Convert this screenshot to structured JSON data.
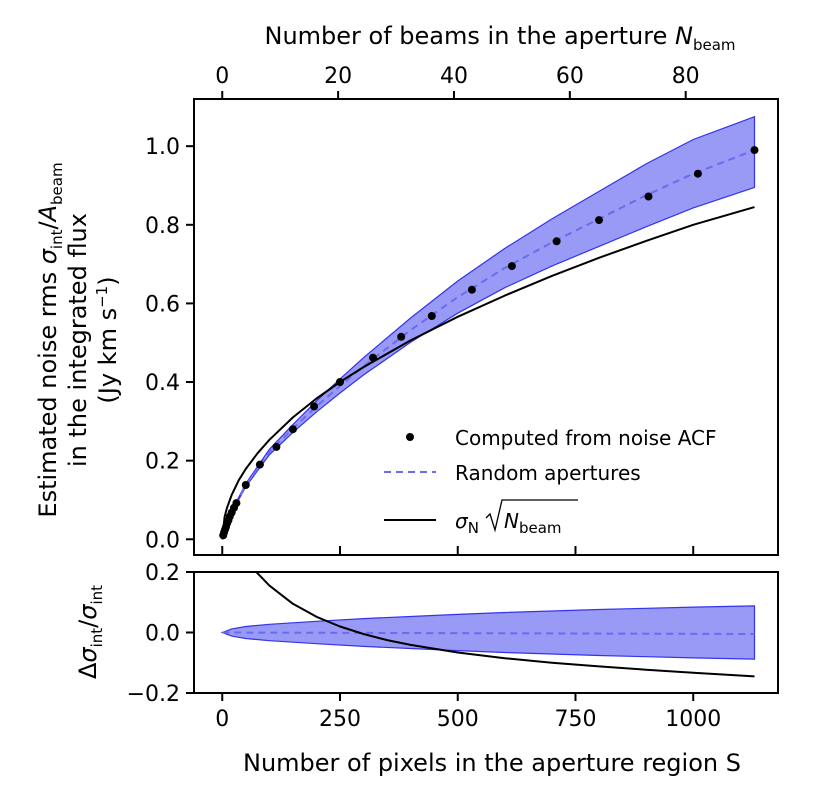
{
  "chart_data": [
    {
      "type": "line",
      "panel": "main",
      "xlabel": "Number of pixels in the aperture region S",
      "ylabel_lines": [
        {
          "pre": "Estimated noise rms ",
          "s1": "σ",
          "s1sub": "int",
          "mid": "/",
          "s2": "A",
          "s2sub": "beam"
        },
        {
          "text": "in the integrated flux"
        },
        {
          "pre": "(Jy km s",
          "sup": "−1",
          "post": ")"
        }
      ],
      "top_xlabel": {
        "pre": "Number of beams in the aperture ",
        "sym": "N",
        "sub": "beam"
      },
      "xlim": [
        -60,
        1180
      ],
      "ylim": [
        -0.04,
        1.12
      ],
      "x_ticks": [
        0,
        250,
        500,
        750,
        1000
      ],
      "x_tick_labels": [
        "0",
        "250",
        "500",
        "750",
        "1000"
      ],
      "y_ticks": [
        0.0,
        0.2,
        0.4,
        0.6,
        0.8,
        1.0
      ],
      "y_tick_labels": [
        "0.0",
        "0.2",
        "0.4",
        "0.6",
        "0.8",
        "1.0"
      ],
      "top_ticks_beams": [
        0,
        20,
        40,
        60,
        80
      ],
      "top_tick_labels": [
        "0",
        "20",
        "40",
        "60",
        "80"
      ],
      "pixels_per_beam": 12.3,
      "legend": {
        "placement": "lower-right",
        "entries": [
          {
            "kind": "marker",
            "label": "Computed from noise ACF"
          },
          {
            "kind": "dashed",
            "label": "Random apertures"
          },
          {
            "kind": "solid",
            "label_sym": "σ",
            "label_sub": "N",
            "label_rad": "N",
            "label_radsub": "beam"
          }
        ]
      },
      "series": [
        {
          "kind": "points",
          "x": [
            2,
            4,
            6,
            8,
            10,
            13,
            16,
            20,
            25,
            30,
            50,
            80,
            115,
            150,
            195,
            250,
            320,
            380,
            445,
            530,
            615,
            710,
            800,
            905,
            1010,
            1130
          ],
          "y": [
            0.01,
            0.018,
            0.025,
            0.032,
            0.04,
            0.048,
            0.058,
            0.068,
            0.08,
            0.092,
            0.138,
            0.19,
            0.235,
            0.28,
            0.338,
            0.4,
            0.462,
            0.515,
            0.568,
            0.635,
            0.695,
            0.758,
            0.812,
            0.872,
            0.93,
            0.99
          ],
          "color": "#000000"
        },
        {
          "kind": "dashed",
          "x": [
            0,
            20,
            50,
            100,
            150,
            200,
            250,
            300,
            400,
            500,
            600,
            700,
            800,
            900,
            1000,
            1130
          ],
          "y": [
            0.0,
            0.07,
            0.138,
            0.222,
            0.282,
            0.338,
            0.39,
            0.44,
            0.532,
            0.616,
            0.69,
            0.755,
            0.815,
            0.875,
            0.93,
            0.99
          ],
          "color": "#6b6bef"
        },
        {
          "kind": "band",
          "x": [
            0,
            20,
            50,
            100,
            150,
            200,
            250,
            300,
            400,
            500,
            600,
            700,
            800,
            900,
            1000,
            1130
          ],
          "lower": [
            0.0,
            0.068,
            0.134,
            0.215,
            0.272,
            0.324,
            0.372,
            0.418,
            0.501,
            0.575,
            0.64,
            0.695,
            0.745,
            0.795,
            0.843,
            0.895
          ],
          "upper": [
            0.0,
            0.072,
            0.142,
            0.229,
            0.292,
            0.352,
            0.408,
            0.462,
            0.563,
            0.657,
            0.74,
            0.815,
            0.885,
            0.955,
            1.017,
            1.075
          ],
          "color": "#3333ee"
        },
        {
          "kind": "solid",
          "x": [
            0,
            5,
            10,
            20,
            35,
            50,
            75,
            100,
            150,
            200,
            250,
            300,
            400,
            500,
            600,
            700,
            800,
            900,
            1000,
            1130
          ],
          "y": [
            0.0,
            0.057,
            0.08,
            0.113,
            0.15,
            0.179,
            0.219,
            0.253,
            0.31,
            0.358,
            0.4,
            0.438,
            0.506,
            0.566,
            0.62,
            0.67,
            0.716,
            0.759,
            0.8,
            0.845
          ],
          "color": "#000000"
        }
      ]
    },
    {
      "type": "line",
      "panel": "residual",
      "ylabel": {
        "pre": "Δ",
        "s1": "σ",
        "s1sub": "int",
        "mid": "/",
        "s2": "σ",
        "s2sub": "int"
      },
      "xlim": [
        -60,
        1180
      ],
      "ylim": [
        -0.2,
        0.2
      ],
      "y_ticks": [
        -0.2,
        0.0,
        0.2
      ],
      "y_tick_labels": [
        "−0.2",
        "0.0",
        "0.2"
      ],
      "series": [
        {
          "kind": "band",
          "x": [
            0,
            20,
            50,
            100,
            200,
            300,
            400,
            500,
            600,
            700,
            800,
            900,
            1000,
            1130
          ],
          "lower": [
            0.0,
            -0.012,
            -0.02,
            -0.027,
            -0.037,
            -0.046,
            -0.053,
            -0.06,
            -0.066,
            -0.071,
            -0.076,
            -0.08,
            -0.084,
            -0.088
          ],
          "upper": [
            0.0,
            0.012,
            0.02,
            0.027,
            0.037,
            0.046,
            0.053,
            0.06,
            0.066,
            0.071,
            0.076,
            0.08,
            0.084,
            0.088
          ],
          "color": "#3333ee"
        },
        {
          "kind": "dashed",
          "x": [
            0,
            1130
          ],
          "y": [
            0.0,
            -0.005
          ],
          "color": "#6b6bef"
        },
        {
          "kind": "solid",
          "x": [
            60,
            100,
            150,
            200,
            250,
            300,
            350,
            400,
            500,
            600,
            700,
            800,
            900,
            1000,
            1130
          ],
          "y": [
            0.22,
            0.155,
            0.095,
            0.052,
            0.02,
            -0.005,
            -0.025,
            -0.041,
            -0.066,
            -0.085,
            -0.1,
            -0.112,
            -0.123,
            -0.133,
            -0.145
          ],
          "color": "#000000"
        }
      ]
    }
  ]
}
